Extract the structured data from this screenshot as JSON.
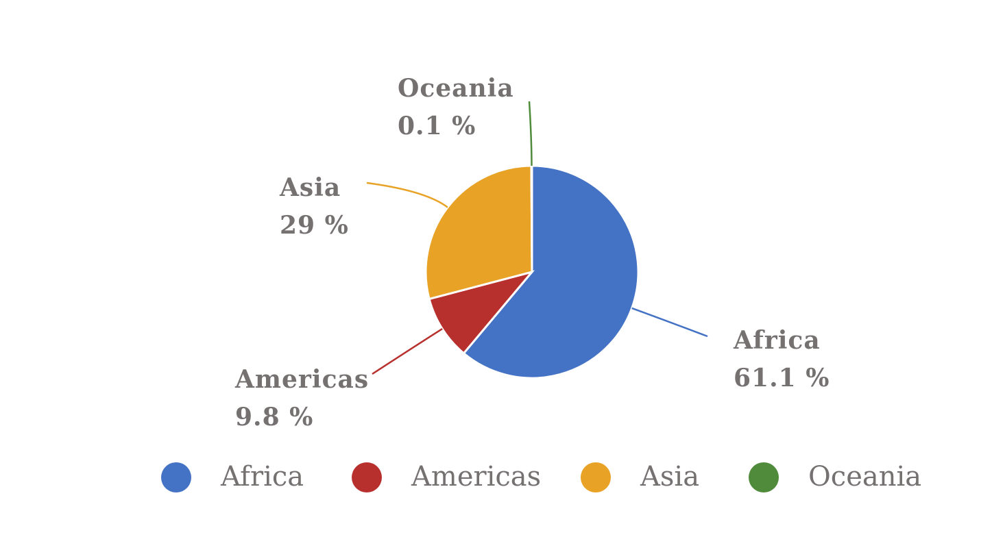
{
  "chart_data": {
    "type": "pie",
    "categories": [
      "Africa",
      "Americas",
      "Asia",
      "Oceania"
    ],
    "values": [
      61.1,
      9.8,
      29,
      0.1
    ],
    "value_labels": [
      "61.1 %",
      "9.8 %",
      "29 %",
      "0.1 %"
    ],
    "colors": [
      "#4472c4",
      "#b8302e",
      "#e8a226",
      "#4f8b3b"
    ],
    "legend": "bottom"
  }
}
